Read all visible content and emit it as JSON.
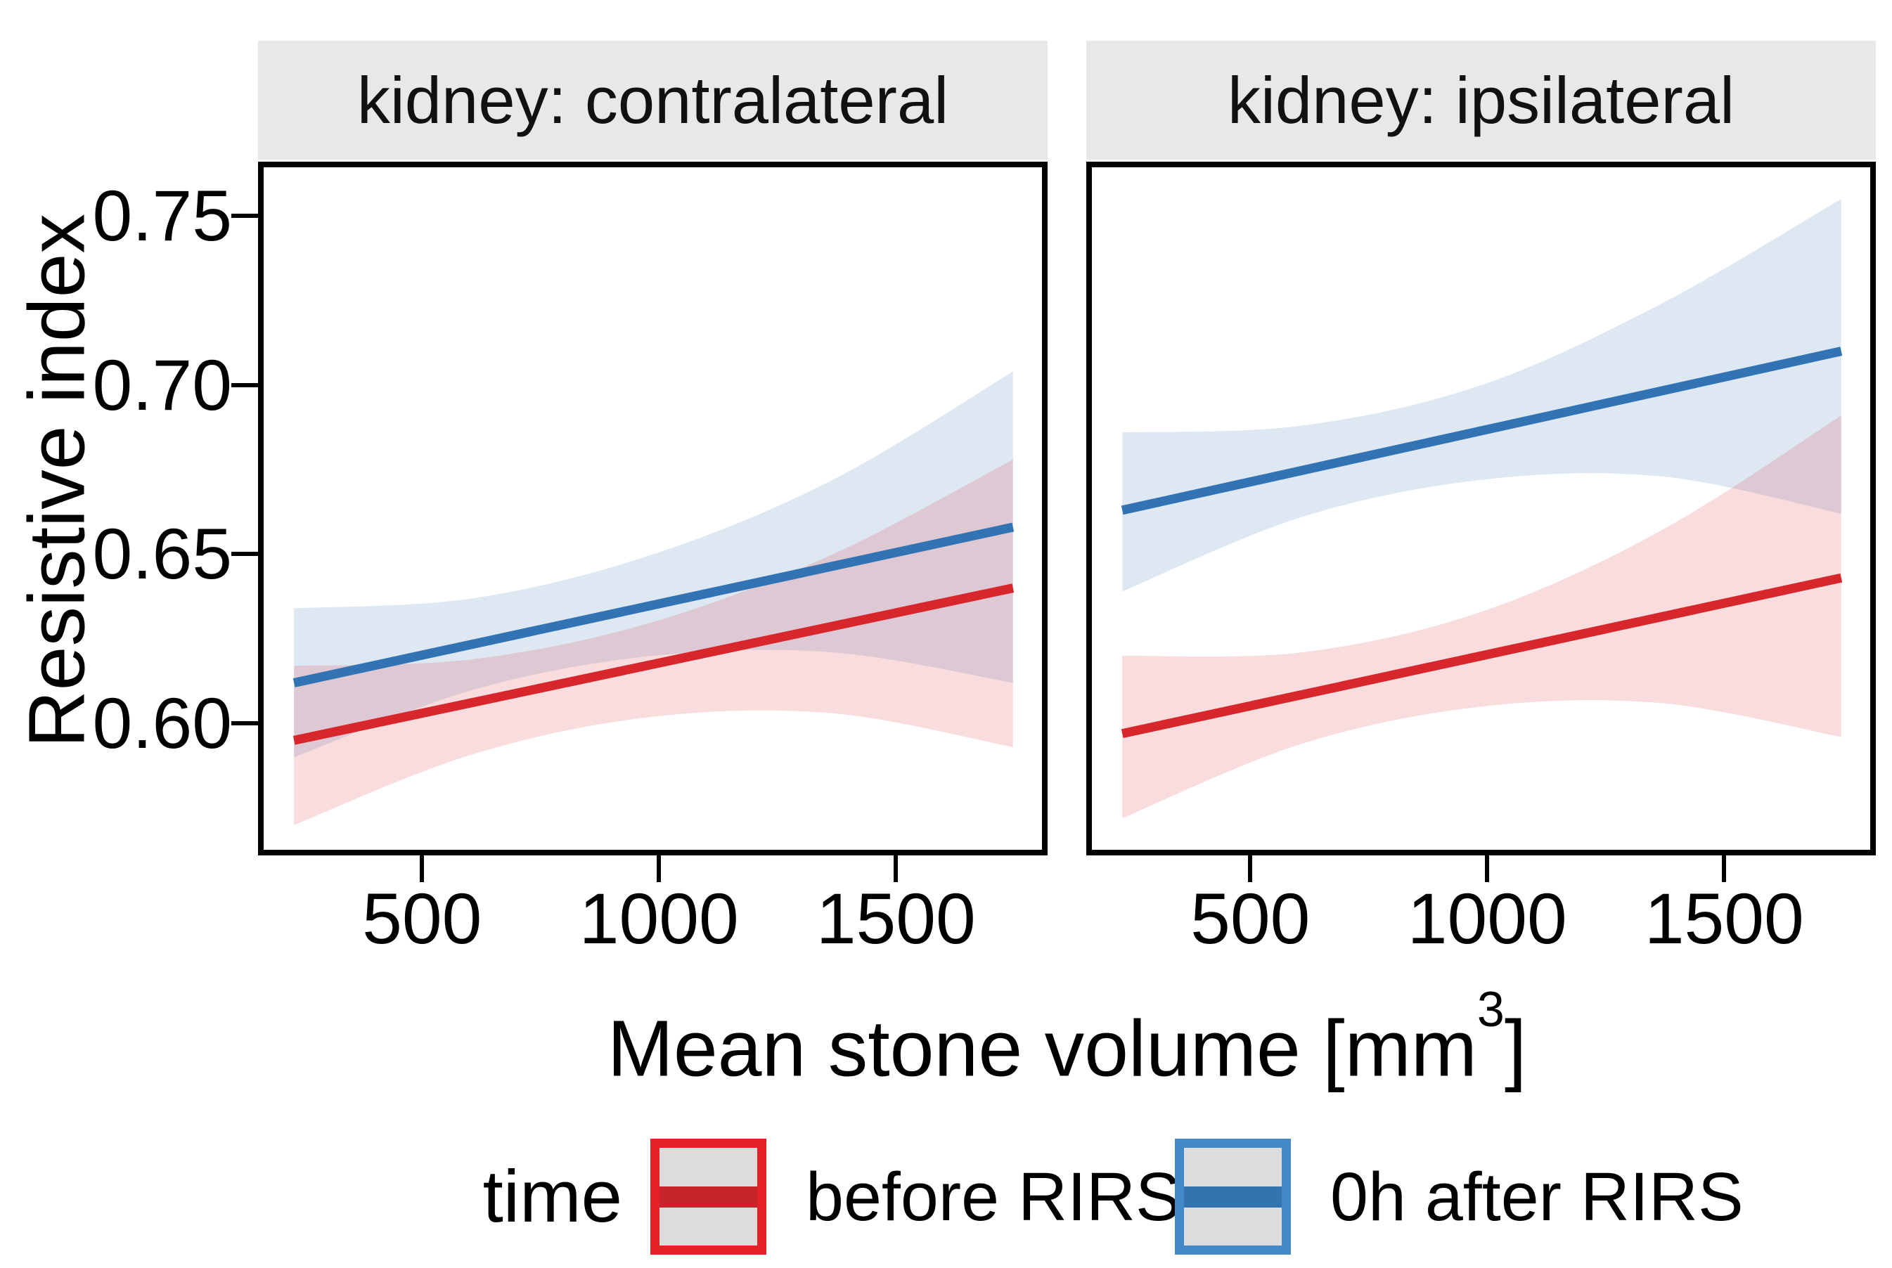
{
  "figure": {
    "y_axis_title": "Resistive index",
    "x_axis_title_prefix": "Mean stone volume [mm",
    "x_axis_title_sup": "3",
    "x_axis_title_suffix": "]",
    "strip_background": "#E8E8E8",
    "panel_border_color": "#000000"
  },
  "legend": {
    "title": "time",
    "key_background": "#DCDCDC",
    "items": [
      {
        "label": "before RIRS",
        "border_color": "#E42127",
        "line_color": "#C8242B"
      },
      {
        "label": "0h after RIRS",
        "border_color": "#4389C8",
        "line_color": "#3474AE"
      }
    ]
  },
  "chart_data": {
    "type": "line",
    "title": "",
    "xlabel": "Mean stone volume [mm3]",
    "ylabel": "Resistive index",
    "xlim": [
      154,
      1820
    ],
    "ylim": [
      0.561,
      0.766
    ],
    "x_ticks": [
      {
        "value": 500,
        "label": "500"
      },
      {
        "value": 1000,
        "label": "1000"
      },
      {
        "value": 1500,
        "label": "1500"
      }
    ],
    "y_ticks": [
      {
        "value": 0.75,
        "label": "0.75"
      },
      {
        "value": 0.7,
        "label": "0.70"
      },
      {
        "value": 0.65,
        "label": "0.65"
      },
      {
        "value": 0.6,
        "label": "0.60"
      }
    ],
    "grid": false,
    "legend_position": "bottom",
    "ribbon_opacity": 0.16,
    "sample_x": [
      230,
      609,
      988,
      1367,
      1747
    ],
    "facets": [
      {
        "label": "kidney: contralateral",
        "series": [
          {
            "name": "before RIRS",
            "color": "#D7262C",
            "line_x": [
              230,
              1747
            ],
            "line_y": [
              0.595,
              0.64
            ],
            "ribbon_top": [
              0.617,
              0.619,
              0.63,
              0.65,
              0.678
            ],
            "ribbon_bottom": [
              0.57,
              0.591,
              0.602,
              0.603,
              0.593
            ]
          },
          {
            "name": "0h after RIRS",
            "color": "#3273B4",
            "line_x": [
              230,
              1747
            ],
            "line_y": [
              0.612,
              0.658
            ],
            "ribbon_top": [
              0.634,
              0.637,
              0.65,
              0.672,
              0.704
            ],
            "ribbon_bottom": [
              0.59,
              0.61,
              0.62,
              0.621,
              0.612
            ]
          }
        ]
      },
      {
        "label": "kidney: ipsilateral",
        "series": [
          {
            "name": "before RIRS",
            "color": "#D7262C",
            "line_x": [
              230,
              1747
            ],
            "line_y": [
              0.597,
              0.643
            ],
            "ribbon_top": [
              0.62,
              0.621,
              0.633,
              0.657,
              0.691
            ],
            "ribbon_bottom": [
              0.572,
              0.594,
              0.605,
              0.606,
              0.596
            ]
          },
          {
            "name": "0h after RIRS",
            "color": "#3273B4",
            "line_x": [
              230,
              1747
            ],
            "line_y": [
              0.663,
              0.71
            ],
            "ribbon_top": [
              0.686,
              0.688,
              0.7,
              0.724,
              0.755
            ],
            "ribbon_bottom": [
              0.639,
              0.661,
              0.672,
              0.673,
              0.662
            ]
          }
        ]
      }
    ]
  }
}
